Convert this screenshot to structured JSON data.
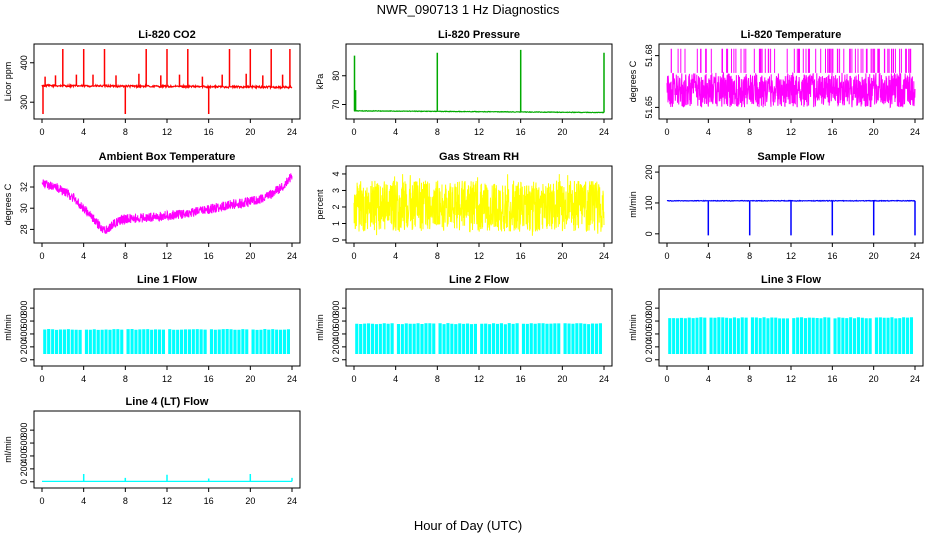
{
  "figure": {
    "title": "NWR_090713  1 Hz Diagnostics",
    "xlabel": "Hour of Day (UTC)"
  },
  "chart_data": [
    {
      "type": "line",
      "title": "Li-820 CO2",
      "ylabel": "Licor ppm",
      "color": "#ff0000",
      "xlim": [
        0,
        24
      ],
      "xticks": [
        0,
        4,
        8,
        12,
        16,
        20,
        24
      ],
      "ylim": [
        265,
        440
      ],
      "yticks": [
        300,
        400
      ],
      "baseline": 340,
      "noise": 5,
      "drift": [
        {
          "x": 0,
          "y": 342
        },
        {
          "x": 24,
          "y": 338
        }
      ],
      "spikes": [
        {
          "x": 0.1,
          "y": 270
        },
        {
          "x": 2.0,
          "y": 435
        },
        {
          "x": 4.0,
          "y": 435
        },
        {
          "x": 6.0,
          "y": 435
        },
        {
          "x": 8.0,
          "y": 270
        },
        {
          "x": 10.0,
          "y": 435
        },
        {
          "x": 12.0,
          "y": 435
        },
        {
          "x": 14.0,
          "y": 435
        },
        {
          "x": 16.0,
          "y": 270
        },
        {
          "x": 18.0,
          "y": 435
        },
        {
          "x": 20.0,
          "y": 435
        },
        {
          "x": 22.0,
          "y": 435
        },
        {
          "x": 23.8,
          "y": 435
        },
        {
          "x": 0.3,
          "y": 365
        },
        {
          "x": 1.3,
          "y": 368
        },
        {
          "x": 3.3,
          "y": 370
        },
        {
          "x": 4.9,
          "y": 370
        },
        {
          "x": 7.1,
          "y": 368
        },
        {
          "x": 9.3,
          "y": 372
        },
        {
          "x": 11.4,
          "y": 368
        },
        {
          "x": 13.2,
          "y": 370
        },
        {
          "x": 15.4,
          "y": 365
        },
        {
          "x": 17.3,
          "y": 370
        },
        {
          "x": 19.6,
          "y": 372
        },
        {
          "x": 21.2,
          "y": 368
        },
        {
          "x": 23.1,
          "y": 370
        }
      ]
    },
    {
      "type": "line",
      "title": "Li-820 Pressure",
      "ylabel": "kPa",
      "color": "#00aa00",
      "xlim": [
        0,
        24
      ],
      "xticks": [
        0,
        4,
        8,
        12,
        16,
        20,
        24
      ],
      "ylim": [
        66,
        90
      ],
      "yticks": [
        70,
        80
      ],
      "baseline": 67.5,
      "noise": 0.2,
      "drift": [
        {
          "x": 0,
          "y": 67.8
        },
        {
          "x": 24,
          "y": 67.2
        }
      ],
      "spikes": [
        {
          "x": 0.05,
          "y": 87
        },
        {
          "x": 0.15,
          "y": 75
        },
        {
          "x": 8.0,
          "y": 88
        },
        {
          "x": 16.0,
          "y": 89
        },
        {
          "x": 24.0,
          "y": 88
        }
      ]
    },
    {
      "type": "line",
      "title": "Li-820 Temperature",
      "ylabel": "degrees C",
      "color": "#ff00ff",
      "xlim": [
        0,
        24
      ],
      "xticks": [
        0,
        4,
        8,
        12,
        16,
        20,
        24
      ],
      "ylim": [
        51.645,
        51.685
      ],
      "yticks": [
        51.65,
        51.68
      ],
      "band": [
        51.65,
        51.67
      ],
      "spike_top": 51.684,
      "spike_count": 90
    },
    {
      "type": "line",
      "title": "Ambient Box Temperature",
      "ylabel": "degrees C",
      "color": "#ff00ff",
      "xlim": [
        0,
        24
      ],
      "xticks": [
        0,
        4,
        8,
        12,
        16,
        20,
        24
      ],
      "ylim": [
        27,
        33.7
      ],
      "yticks": [
        28,
        30,
        32
      ],
      "noise": 0.9,
      "profile": [
        {
          "x": 0,
          "y": 32.3
        },
        {
          "x": 1,
          "y": 32.1
        },
        {
          "x": 2,
          "y": 31.7
        },
        {
          "x": 3,
          "y": 31.0
        },
        {
          "x": 4,
          "y": 30.0
        },
        {
          "x": 5,
          "y": 28.9
        },
        {
          "x": 6,
          "y": 27.9
        },
        {
          "x": 7,
          "y": 28.6
        },
        {
          "x": 8,
          "y": 29.0
        },
        {
          "x": 10,
          "y": 29.1
        },
        {
          "x": 12,
          "y": 29.3
        },
        {
          "x": 14,
          "y": 29.5
        },
        {
          "x": 16,
          "y": 29.9
        },
        {
          "x": 18,
          "y": 30.3
        },
        {
          "x": 20,
          "y": 30.6
        },
        {
          "x": 21,
          "y": 30.9
        },
        {
          "x": 22,
          "y": 31.3
        },
        {
          "x": 23,
          "y": 32.0
        },
        {
          "x": 24,
          "y": 33.0
        }
      ]
    },
    {
      "type": "line",
      "title": "Gas Stream RH",
      "ylabel": "percent",
      "color": "#ffff00",
      "xlim": [
        0,
        24
      ],
      "xticks": [
        0,
        4,
        8,
        12,
        16,
        20,
        24
      ],
      "ylim": [
        0,
        4.3
      ],
      "yticks": [
        0,
        1,
        2,
        3,
        4
      ],
      "band": [
        0.5,
        3.6
      ],
      "noise_extremes": [
        0.1,
        4.1
      ]
    },
    {
      "type": "line",
      "title": "Sample Flow",
      "ylabel": "ml/min",
      "color": "#0000ff",
      "xlim": [
        0,
        24
      ],
      "xticks": [
        0,
        4,
        8,
        12,
        16,
        20,
        24
      ],
      "ylim": [
        -20,
        210
      ],
      "yticks": [
        0,
        100,
        200
      ],
      "baseline": 107,
      "noise": 2,
      "dips": [
        {
          "x": 4.0,
          "y": -5
        },
        {
          "x": 8.0,
          "y": -5
        },
        {
          "x": 12.0,
          "y": -5
        },
        {
          "x": 16.0,
          "y": -5
        },
        {
          "x": 20.0,
          "y": -5
        },
        {
          "x": 24.0,
          "y": -5
        }
      ]
    },
    {
      "type": "line",
      "title": "Line 1 Flow",
      "ylabel": "ml/min",
      "color": "#00ffff",
      "xlim": [
        0,
        24
      ],
      "xticks": [
        0,
        4,
        8,
        12,
        16,
        20,
        24
      ],
      "ylim": [
        -50,
        1050
      ],
      "yticks": [
        0,
        200,
        400,
        600,
        800
      ],
      "band": [
        90,
        470
      ],
      "gaps": [
        0,
        4,
        8,
        12,
        16,
        20,
        24
      ]
    },
    {
      "type": "line",
      "title": "Line 2 Flow",
      "ylabel": "ml/min",
      "color": "#00ffff",
      "xlim": [
        0,
        24
      ],
      "xticks": [
        0,
        4,
        8,
        12,
        16,
        20,
        24
      ],
      "ylim": [
        -50,
        1050
      ],
      "yticks": [
        0,
        200,
        400,
        600,
        800
      ],
      "band": [
        90,
        560
      ],
      "gaps": [
        0,
        4,
        8,
        12,
        16,
        20,
        24
      ]
    },
    {
      "type": "line",
      "title": "Line 3 Flow",
      "ylabel": "ml/min",
      "color": "#00ffff",
      "xlim": [
        0,
        24
      ],
      "xticks": [
        0,
        4,
        8,
        12,
        16,
        20,
        24
      ],
      "ylim": [
        -50,
        1050
      ],
      "yticks": [
        0,
        200,
        400,
        600,
        800
      ],
      "band": [
        90,
        650
      ],
      "gaps": [
        0,
        4,
        8,
        12,
        16,
        20,
        24
      ]
    },
    {
      "type": "line",
      "title": "Line 4 (LT) Flow",
      "ylabel": "ml/min",
      "color": "#00ffff",
      "xlim": [
        0,
        24
      ],
      "xticks": [
        0,
        4,
        8,
        12,
        16,
        20,
        24
      ],
      "ylim": [
        -50,
        1050
      ],
      "yticks": [
        0,
        200,
        400,
        600,
        800
      ],
      "baseline": 5,
      "spikes": [
        {
          "x": 4.0,
          "y": 120
        },
        {
          "x": 8.0,
          "y": 60
        },
        {
          "x": 12.0,
          "y": 110
        },
        {
          "x": 16.0,
          "y": 50
        },
        {
          "x": 20.0,
          "y": 120
        },
        {
          "x": 24.0,
          "y": 60
        }
      ]
    }
  ]
}
